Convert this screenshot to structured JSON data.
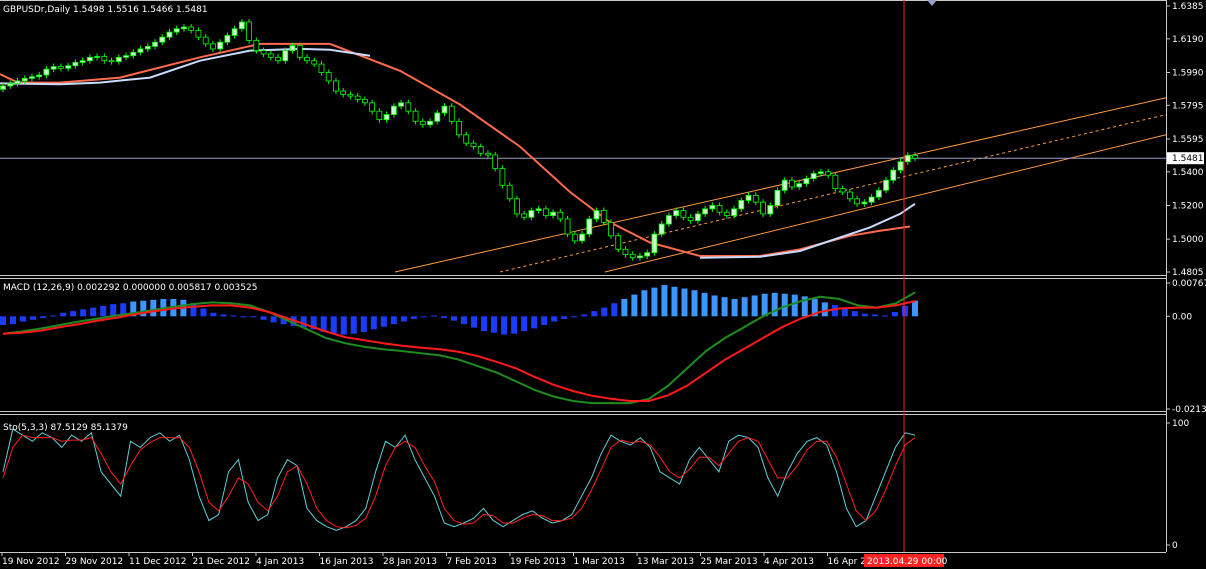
{
  "panels": {
    "price_header": "GBPUSDr,Daily  1.5498 1.5516 1.5466 1.5481",
    "macd_header": "MACD (12,26,9) 0.002292 0.000000 0.005817 0.003525",
    "sto_header": "Sto(5,3,3) 87.5129 85.1379"
  },
  "colors": {
    "background": "#000000",
    "axis": "#c8c8c8",
    "bull_candle": "#c8ffc8",
    "bear_candle": "#000000",
    "candle_wick": "#00ff00",
    "ma_fast": "#ff6a4d",
    "ma_slow": "#c8dcff",
    "channel": "#ff9a40",
    "macd_hist": "#1a3cff",
    "macd_hist_pos": "#3c96ff",
    "macd_line": "#1e8c1e",
    "signal_line": "#ff1a1a",
    "sto_main": "#5fd0d8",
    "sto_signal": "#ff2020",
    "crosshair": "#ff2020",
    "current_price_line": "#9aa0c8"
  },
  "chart_data": [
    {
      "type": "candlestick",
      "title": "GBPUSDr,Daily",
      "ohlc_last": {
        "open": 1.5498,
        "high": 1.5516,
        "low": 1.5466,
        "close": 1.5481
      },
      "y_ticks": [
        "1.6385",
        "1.6190",
        "1.5990",
        "1.5795",
        "1.5595",
        "1.5400",
        "1.5200",
        "1.5000",
        "1.4805"
      ],
      "ylim": [
        1.4805,
        1.6385
      ],
      "current_price_label": "1.5481",
      "x_tick_labels": [
        "19 Nov 2012",
        "29 Nov 2012",
        "11 Dec 2012",
        "21 Dec 2012",
        "4 Jan 2013",
        "16 Jan 2013",
        "28 Jan 2013",
        "7 Feb 2013",
        "19 Feb 2013",
        "1 Mar 2013",
        "13 Mar 2013",
        "25 Mar 2013",
        "4 Apr 2013",
        "16 Apr 2013"
      ],
      "crosshair_date_label": "2013.04.29 00:00",
      "close_series": [
        1.591,
        1.5925,
        1.594,
        1.5955,
        1.5965,
        1.5975,
        1.601,
        1.6025,
        1.6015,
        1.603,
        1.605,
        1.606,
        1.608,
        1.6085,
        1.606,
        1.6055,
        1.608,
        1.609,
        1.611,
        1.613,
        1.6145,
        1.617,
        1.62,
        1.623,
        1.625,
        1.626,
        1.624,
        1.62,
        1.616,
        1.613,
        1.617,
        1.621,
        1.625,
        1.629,
        1.618,
        1.612,
        1.61,
        1.608,
        1.606,
        1.612,
        1.615,
        1.608,
        1.606,
        1.604,
        1.599,
        1.594,
        1.588,
        1.586,
        1.585,
        1.583,
        1.581,
        1.576,
        1.571,
        1.574,
        1.579,
        1.581,
        1.576,
        1.57,
        1.568,
        1.57,
        1.575,
        1.579,
        1.57,
        1.562,
        1.557,
        1.555,
        1.551,
        1.55,
        1.542,
        1.532,
        1.524,
        1.515,
        1.513,
        1.517,
        1.518,
        1.514,
        1.516,
        1.512,
        1.503,
        1.499,
        1.503,
        1.512,
        1.517,
        1.51,
        1.502,
        1.494,
        1.491,
        1.489,
        1.49,
        1.492,
        1.503,
        1.509,
        1.514,
        1.517,
        1.513,
        1.511,
        1.515,
        1.518,
        1.52,
        1.516,
        1.514,
        1.518,
        1.523,
        1.526,
        1.522,
        1.515,
        1.52,
        1.529,
        1.535,
        1.531,
        1.533,
        1.536,
        1.539,
        1.54,
        1.538,
        1.53,
        1.528,
        1.524,
        1.521,
        1.522,
        1.525,
        1.529,
        1.535,
        1.541,
        1.546,
        1.5498,
        1.5481
      ],
      "ma_fast_points": [
        [
          0,
          1.598
        ],
        [
          18,
          1.593
        ],
        [
          60,
          1.593
        ],
        [
          120,
          1.596
        ],
        [
          200,
          1.608
        ],
        [
          260,
          1.616
        ],
        [
          330,
          1.616
        ],
        [
          400,
          1.6
        ],
        [
          460,
          1.58
        ],
        [
          520,
          1.555
        ],
        [
          570,
          1.528
        ],
        [
          610,
          1.51
        ],
        [
          650,
          1.498
        ],
        [
          700,
          1.49
        ],
        [
          760,
          1.49
        ],
        [
          800,
          1.494
        ],
        [
          850,
          1.502
        ],
        [
          880,
          1.505
        ],
        [
          910,
          1.5075
        ]
      ],
      "ma_slow_points": [
        [
          0,
          1.5925
        ],
        [
          60,
          1.592
        ],
        [
          100,
          1.593
        ],
        [
          150,
          1.596
        ],
        [
          200,
          1.606
        ],
        [
          250,
          1.612
        ],
        [
          300,
          1.613
        ],
        [
          330,
          1.6125
        ],
        [
          370,
          1.609
        ]
      ],
      "ma_slow_points_2": [
        [
          700,
          1.489
        ],
        [
          760,
          1.4895
        ],
        [
          800,
          1.493
        ],
        [
          840,
          1.501
        ],
        [
          870,
          1.507
        ],
        [
          900,
          1.515
        ],
        [
          915,
          1.521
        ]
      ]
    },
    {
      "type": "bar",
      "title": "MACD (12,26,9)",
      "values_header": [
        "0.002292",
        "0.000000",
        "0.005817",
        "0.003525"
      ],
      "y_ticks": [
        "0.00767",
        "0.00",
        "-0.02135"
      ],
      "ylim": [
        -0.02135,
        0.00767
      ],
      "histogram": [
        -0.002,
        -0.0018,
        -0.0012,
        -0.0008,
        -0.0004,
        0.0002,
        0.0008,
        0.0012,
        0.0016,
        0.002,
        0.0024,
        0.0028,
        0.003,
        0.0034,
        0.0036,
        0.0038,
        0.004,
        0.004,
        0.0038,
        0.003,
        0.0018,
        0.0008,
        0.0004,
        0.0002,
        0.0,
        -0.0002,
        -0.0008,
        -0.0014,
        -0.0018,
        -0.0022,
        -0.0026,
        -0.003,
        -0.0036,
        -0.004,
        -0.0042,
        -0.004,
        -0.0036,
        -0.003,
        -0.0024,
        -0.0018,
        -0.0012,
        -0.0006,
        -0.0002,
        0.0002,
        -0.0004,
        -0.001,
        -0.0018,
        -0.0026,
        -0.0034,
        -0.0038,
        -0.0042,
        -0.004,
        -0.0034,
        -0.0028,
        -0.002,
        -0.0012,
        -0.0006,
        -0.0002,
        0.0004,
        0.0012,
        0.002,
        0.003,
        0.004,
        0.005,
        0.006,
        0.0066,
        0.0072,
        0.0068,
        0.0064,
        0.006,
        0.0054,
        0.0048,
        0.0044,
        0.004,
        0.0044,
        0.0048,
        0.0052,
        0.0054,
        0.0052,
        0.005,
        0.0046,
        0.004,
        0.0032,
        0.0026,
        0.0018,
        0.0012,
        0.0006,
        0.0004,
        0.0002,
        0.001,
        0.0024,
        0.0036
      ],
      "macd_line": [
        -0.004,
        -0.0035,
        -0.0028,
        -0.002,
        -0.0012,
        -0.0005,
        0.0002,
        0.0008,
        0.0015,
        0.0022,
        0.0028,
        0.0032,
        0.003,
        0.0025,
        0.001,
        -0.001,
        -0.003,
        -0.005,
        -0.0062,
        -0.007,
        -0.0076,
        -0.008,
        -0.0085,
        -0.009,
        -0.01,
        -0.0115,
        -0.013,
        -0.015,
        -0.017,
        -0.0185,
        -0.0195,
        -0.02,
        -0.02,
        -0.02,
        -0.019,
        -0.016,
        -0.012,
        -0.008,
        -0.005,
        -0.0025,
        0.0,
        0.002,
        0.0035,
        0.0045,
        0.004,
        0.0025,
        0.002,
        0.003,
        0.0055
      ],
      "signal_line": [
        -0.004,
        -0.0038,
        -0.0033,
        -0.0025,
        -0.0018,
        -0.001,
        -0.0003,
        0.0005,
        0.0012,
        0.0018,
        0.0022,
        0.0025,
        0.0025,
        0.002,
        0.001,
        -0.0005,
        -0.002,
        -0.0035,
        -0.0048,
        -0.0055,
        -0.0062,
        -0.0068,
        -0.0072,
        -0.0076,
        -0.0082,
        -0.0092,
        -0.0105,
        -0.012,
        -0.014,
        -0.0158,
        -0.0172,
        -0.0183,
        -0.019,
        -0.0195,
        -0.0195,
        -0.0182,
        -0.016,
        -0.013,
        -0.01,
        -0.0075,
        -0.005,
        -0.0025,
        -0.0005,
        0.001,
        0.0018,
        0.002,
        0.002,
        0.0025,
        0.0035
      ]
    },
    {
      "type": "line",
      "title": "Sto(5,3,3)",
      "values_header": [
        "87.5129",
        "85.1379"
      ],
      "y_ticks": [
        "100",
        "0"
      ],
      "ylim": [
        0,
        100
      ],
      "sto_main": [
        60,
        95,
        90,
        85,
        92,
        88,
        80,
        90,
        85,
        92,
        60,
        50,
        40,
        85,
        80,
        88,
        92,
        85,
        90,
        70,
        40,
        20,
        25,
        60,
        70,
        35,
        20,
        25,
        55,
        70,
        65,
        30,
        20,
        15,
        12,
        15,
        20,
        30,
        60,
        85,
        80,
        90,
        70,
        55,
        40,
        18,
        15,
        18,
        22,
        30,
        20,
        15,
        20,
        25,
        28,
        22,
        18,
        20,
        25,
        40,
        55,
        75,
        90,
        85,
        82,
        88,
        80,
        60,
        55,
        50,
        70,
        80,
        70,
        60,
        85,
        90,
        88,
        80,
        55,
        40,
        60,
        75,
        85,
        88,
        82,
        60,
        30,
        15,
        20,
        40,
        60,
        80,
        92,
        90
      ],
      "sto_signal": [
        55,
        80,
        90,
        88,
        88,
        88,
        85,
        86,
        86,
        88,
        75,
        60,
        50,
        65,
        78,
        84,
        88,
        88,
        88,
        80,
        60,
        35,
        28,
        40,
        55,
        50,
        35,
        28,
        40,
        60,
        65,
        50,
        30,
        20,
        15,
        14,
        16,
        22,
        40,
        65,
        80,
        85,
        80,
        65,
        52,
        30,
        20,
        17,
        18,
        25,
        24,
        18,
        18,
        22,
        25,
        24,
        20,
        20,
        22,
        30,
        45,
        62,
        80,
        86,
        84,
        85,
        82,
        72,
        60,
        55,
        62,
        72,
        72,
        65,
        75,
        85,
        88,
        85,
        70,
        55,
        55,
        65,
        78,
        85,
        85,
        72,
        50,
        28,
        20,
        28,
        45,
        65,
        82,
        88
      ]
    }
  ]
}
